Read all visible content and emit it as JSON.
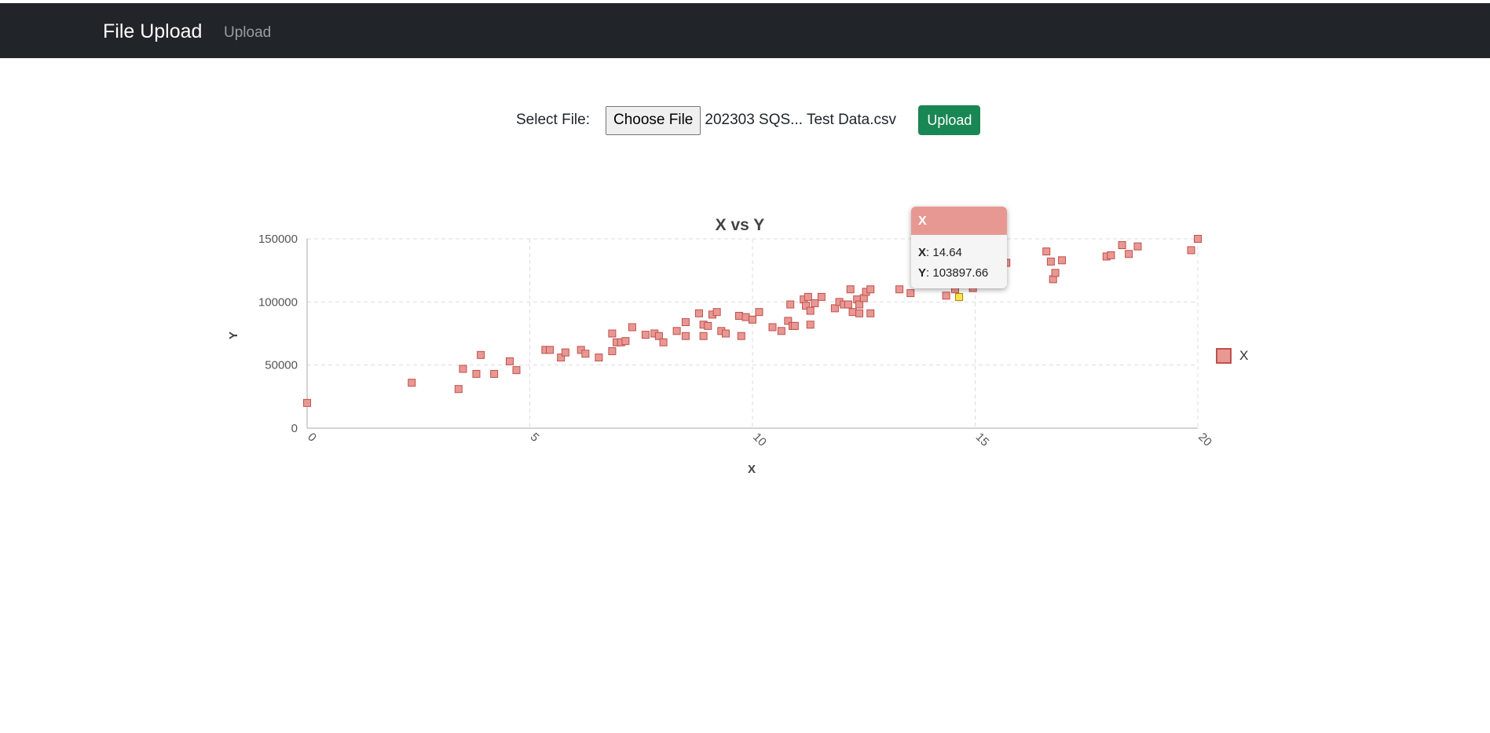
{
  "navbar": {
    "brand": "File Upload",
    "link": "Upload"
  },
  "form": {
    "select_label": "Select File:",
    "choose_label": "Choose File",
    "file_name": "202303 SQS... Test Data.csv",
    "upload_label": "Upload"
  },
  "colors": {
    "marker_fill": "#e89892",
    "marker_stroke": "#c0504d",
    "highlight": "#ffe34d",
    "navbar": "#212529",
    "upload_button": "#198754"
  },
  "tooltip": {
    "series": "X",
    "x_label": "X",
    "x_value": "14.64",
    "y_label": "Y",
    "y_value": "103897.66"
  },
  "chart_data": {
    "type": "scatter",
    "title": "X vs Y",
    "xlabel": "X",
    "ylabel": "Y",
    "xlim": [
      0,
      20
    ],
    "ylim": [
      0,
      150000
    ],
    "xticks": [
      "0",
      "5",
      "10",
      "15",
      "20"
    ],
    "yticks": [
      "0",
      "50000",
      "100000",
      "150000"
    ],
    "grid": true,
    "legend_position": "right",
    "series": [
      {
        "name": "X",
        "points": [
          [
            0.0,
            20000
          ],
          [
            2.35,
            36000
          ],
          [
            3.4,
            31000
          ],
          [
            3.5,
            47000
          ],
          [
            3.8,
            43000
          ],
          [
            3.9,
            58000
          ],
          [
            4.2,
            43000
          ],
          [
            4.55,
            53000
          ],
          [
            4.7,
            46000
          ],
          [
            5.35,
            62000
          ],
          [
            5.45,
            62000
          ],
          [
            5.7,
            56000
          ],
          [
            5.8,
            60000
          ],
          [
            6.15,
            62000
          ],
          [
            6.25,
            59000
          ],
          [
            6.55,
            56000
          ],
          [
            6.85,
            75000
          ],
          [
            6.85,
            61000
          ],
          [
            6.95,
            68000
          ],
          [
            7.05,
            68000
          ],
          [
            7.15,
            69000
          ],
          [
            7.3,
            80000
          ],
          [
            7.6,
            74000
          ],
          [
            7.8,
            75000
          ],
          [
            7.9,
            73000
          ],
          [
            8.0,
            68000
          ],
          [
            8.3,
            77000
          ],
          [
            8.5,
            84000
          ],
          [
            8.5,
            73000
          ],
          [
            8.8,
            91000
          ],
          [
            8.9,
            82000
          ],
          [
            8.9,
            73000
          ],
          [
            9.0,
            81000
          ],
          [
            9.1,
            90000
          ],
          [
            9.2,
            92000
          ],
          [
            9.3,
            77000
          ],
          [
            9.4,
            75000
          ],
          [
            9.7,
            89000
          ],
          [
            9.75,
            73000
          ],
          [
            9.85,
            88000
          ],
          [
            10.0,
            86000
          ],
          [
            10.15,
            92000
          ],
          [
            10.45,
            80000
          ],
          [
            10.65,
            77000
          ],
          [
            10.8,
            85000
          ],
          [
            10.85,
            98000
          ],
          [
            10.9,
            81000
          ],
          [
            10.95,
            81000
          ],
          [
            11.15,
            102000
          ],
          [
            11.2,
            97000
          ],
          [
            11.25,
            104000
          ],
          [
            11.3,
            82000
          ],
          [
            11.3,
            93000
          ],
          [
            11.4,
            99000
          ],
          [
            11.55,
            104000
          ],
          [
            11.85,
            95000
          ],
          [
            11.95,
            100000
          ],
          [
            12.05,
            98000
          ],
          [
            12.15,
            98000
          ],
          [
            12.2,
            110000
          ],
          [
            12.25,
            92000
          ],
          [
            12.35,
            102000
          ],
          [
            12.4,
            98000
          ],
          [
            12.4,
            91000
          ],
          [
            12.5,
            103000
          ],
          [
            12.55,
            108000
          ],
          [
            12.65,
            110000
          ],
          [
            12.65,
            91000
          ],
          [
            13.3,
            110000
          ],
          [
            13.55,
            107000
          ],
          [
            14.35,
            105000
          ],
          [
            14.55,
            110000
          ],
          [
            14.64,
            103897.66
          ],
          [
            14.95,
            111000
          ],
          [
            15.7,
            131000
          ],
          [
            16.6,
            140000
          ],
          [
            16.7,
            132000
          ],
          [
            16.75,
            118000
          ],
          [
            16.8,
            123000
          ],
          [
            16.95,
            133000
          ],
          [
            17.95,
            136000
          ],
          [
            18.05,
            137000
          ],
          [
            18.3,
            145000
          ],
          [
            18.45,
            138000
          ],
          [
            18.65,
            144000
          ],
          [
            19.85,
            141000
          ],
          [
            20.0,
            150000
          ]
        ]
      }
    ],
    "highlighted_point": [
      14.64,
      103897.66
    ]
  }
}
